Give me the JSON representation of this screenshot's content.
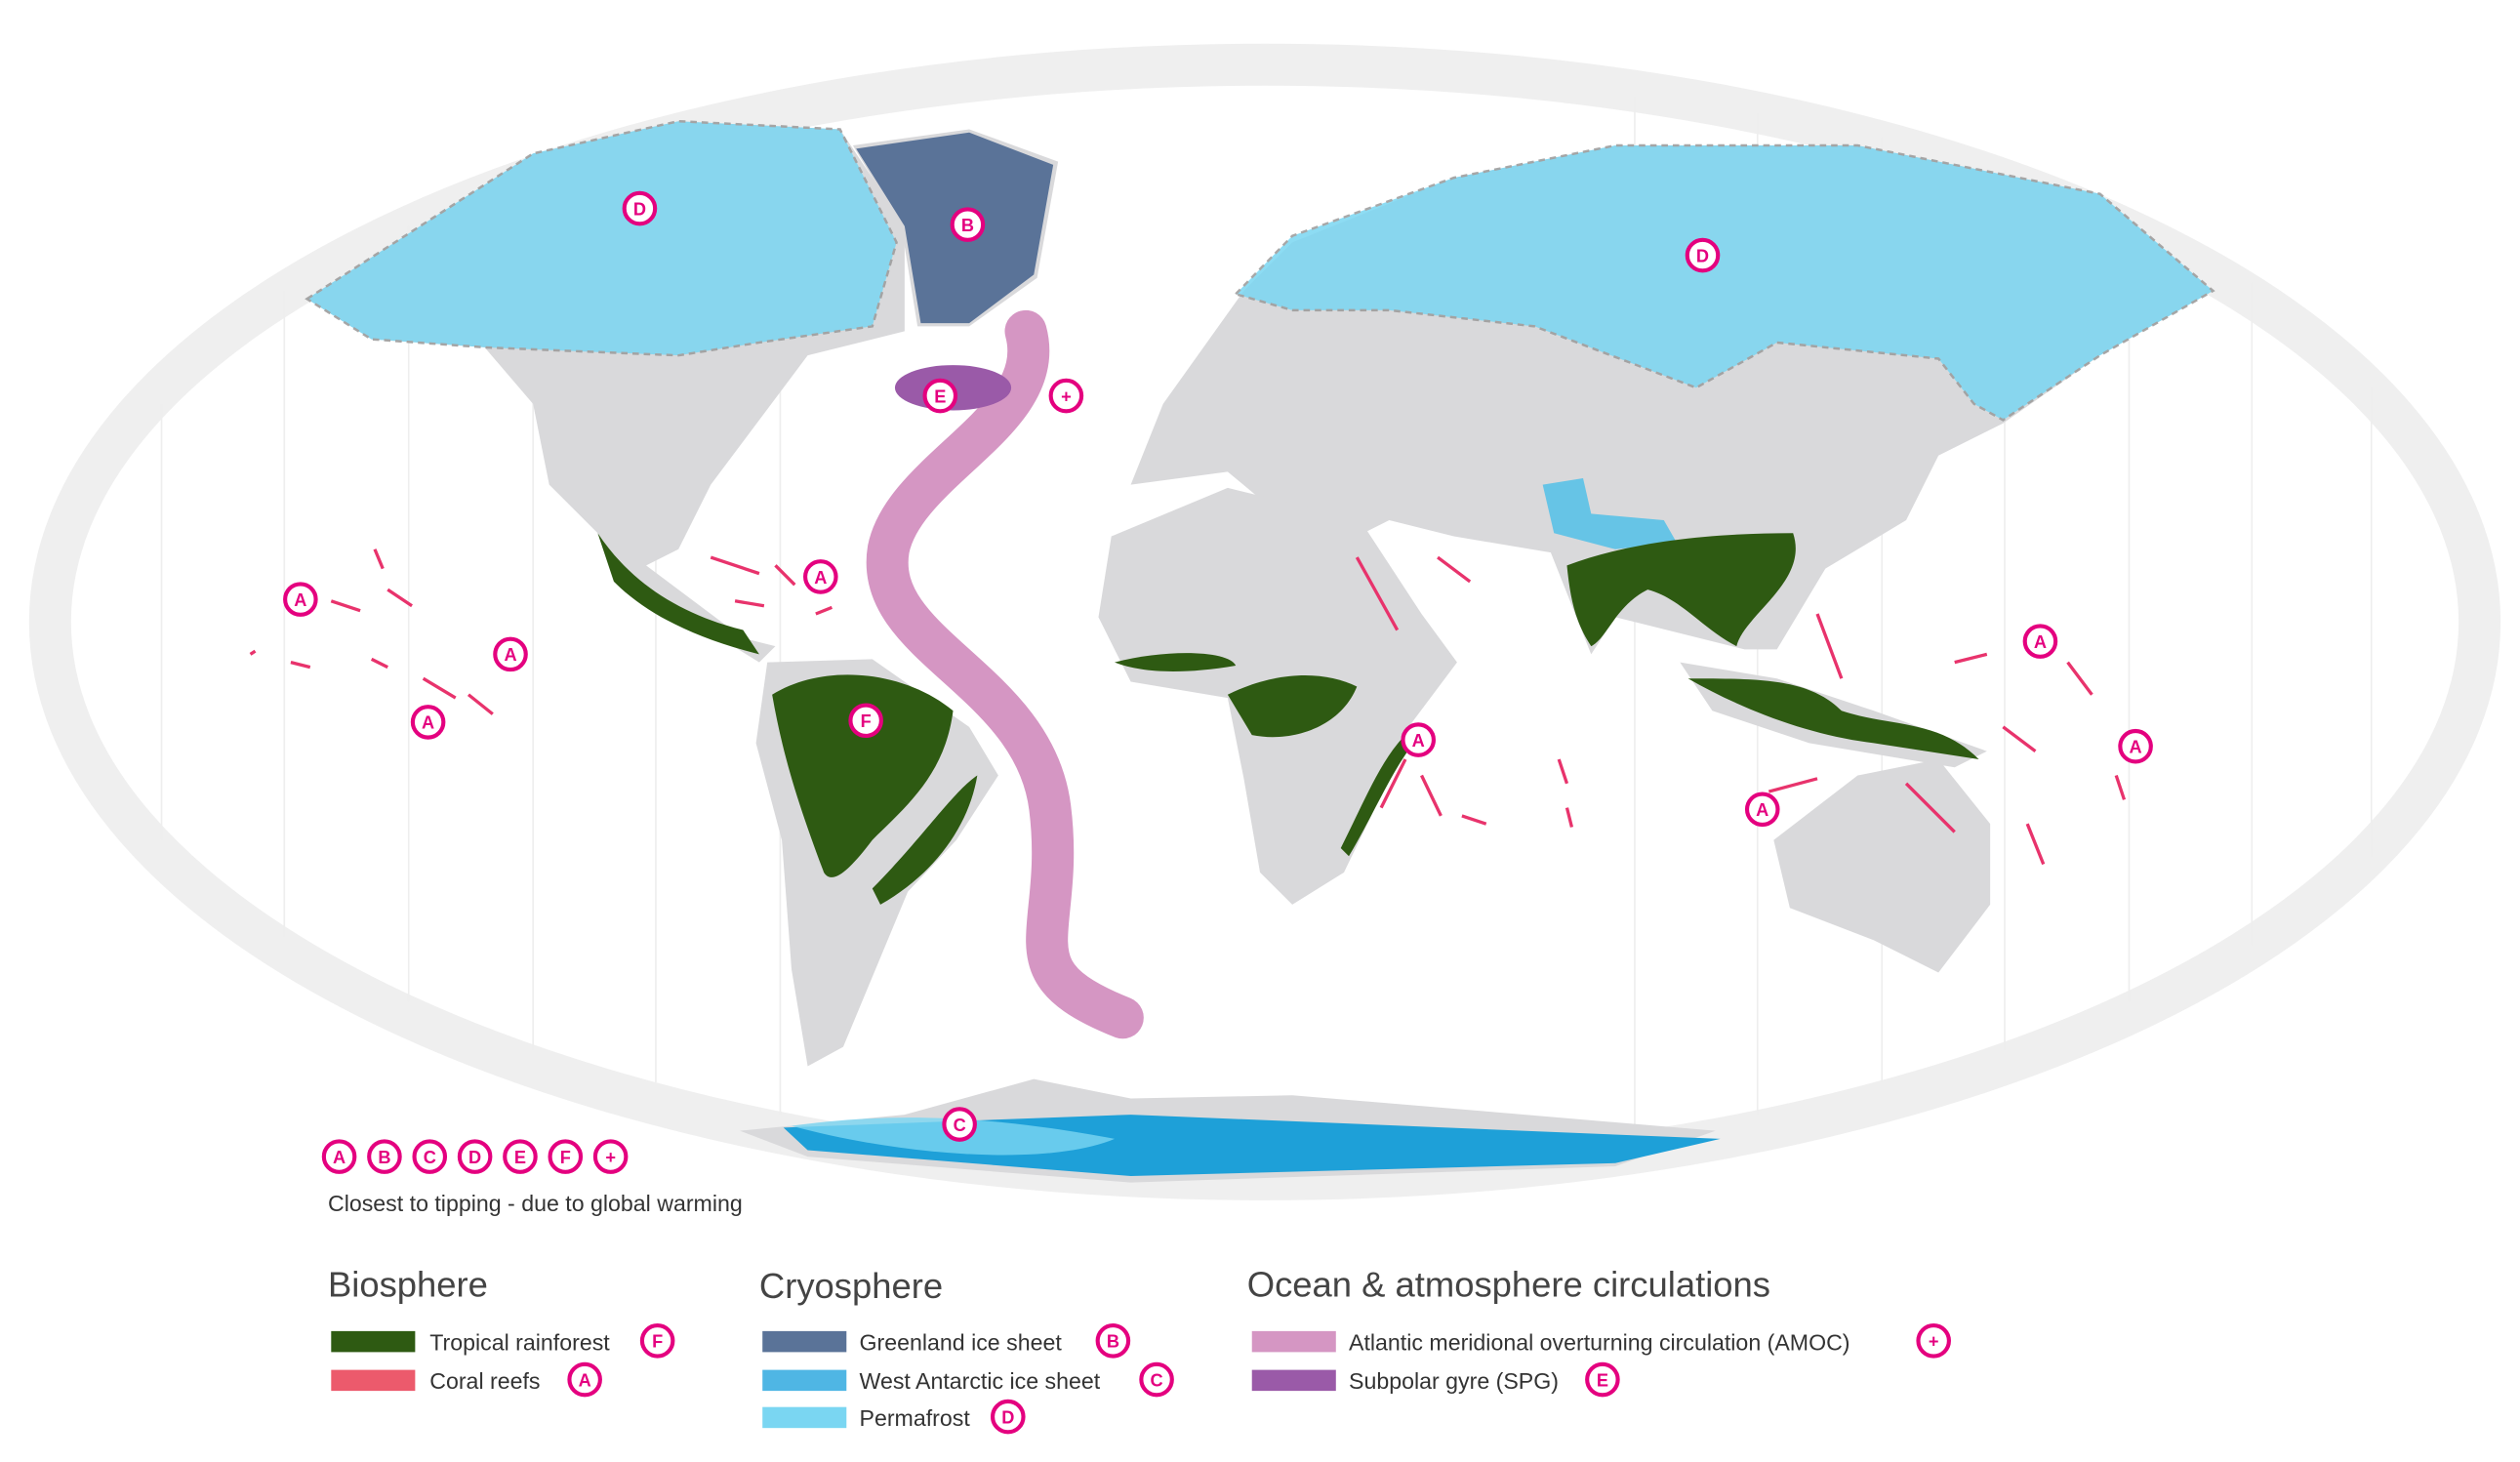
{
  "map": {
    "markers": [
      "D",
      "B",
      "D",
      "E",
      "+",
      "A",
      "A",
      "A",
      "A",
      "F",
      "A",
      "A",
      "A",
      "A",
      "C"
    ]
  },
  "key": {
    "letters": [
      "A",
      "B",
      "C",
      "D",
      "E",
      "F",
      "+"
    ],
    "caption": "Closest to tipping - due to global warming"
  },
  "legend": {
    "groups": [
      {
        "title": "Biosphere",
        "items": [
          {
            "name": "Tropical rainforest",
            "marker": "F"
          },
          {
            "name": "Coral reefs",
            "marker": "A"
          }
        ]
      },
      {
        "title": "Cryosphere",
        "items": [
          {
            "name": "Greenland ice sheet",
            "marker": "B"
          },
          {
            "name": "West Antarctic ice sheet",
            "marker": "C"
          },
          {
            "name": "Permafrost",
            "marker": "D"
          }
        ]
      },
      {
        "title": "Ocean & atmosphere circulations",
        "items": [
          {
            "name": "Atlantic meridional overturning circulation (AMOC)",
            "marker": "+"
          },
          {
            "name": "Subpolar gyre (SPG)",
            "marker": "E"
          }
        ]
      }
    ]
  }
}
